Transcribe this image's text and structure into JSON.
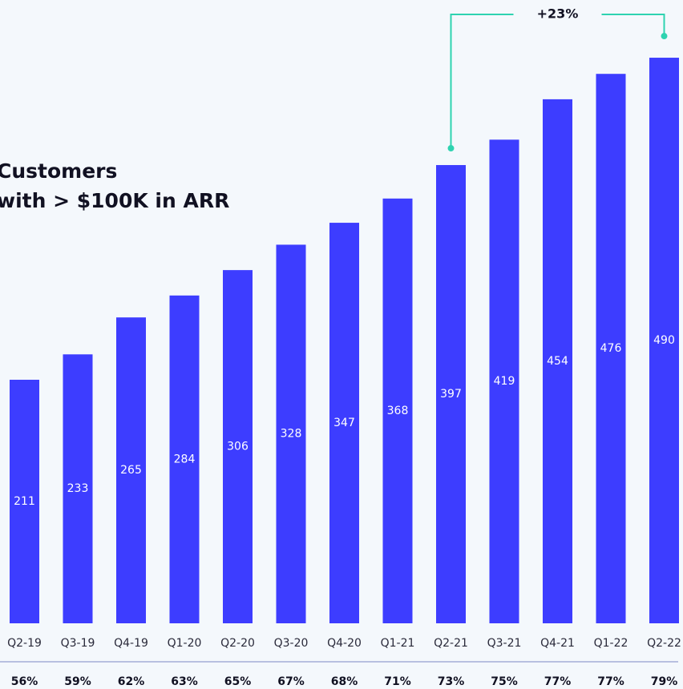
{
  "chart_data": {
    "type": "bar",
    "title_lines": [
      "Customers",
      "with > $100K in ARR"
    ],
    "categories": [
      "Q2-19",
      "Q3-19",
      "Q4-19",
      "Q1-20",
      "Q2-20",
      "Q3-20",
      "Q4-20",
      "Q1-21",
      "Q2-21",
      "Q3-21",
      "Q4-21",
      "Q1-22",
      "Q2-22"
    ],
    "values": [
      211,
      233,
      265,
      284,
      306,
      328,
      347,
      368,
      397,
      419,
      454,
      476,
      490
    ],
    "color": "#3d3dff",
    "ylim": [
      0,
      540
    ],
    "row_labels": [
      "56%",
      "59%",
      "62%",
      "63%",
      "65%",
      "67%",
      "68%",
      "71%",
      "73%",
      "75%",
      "77%",
      "77%",
      "79%"
    ],
    "annotation": {
      "text": "+23%",
      "from": 8,
      "to": 12,
      "color": "#2ed3b0"
    }
  }
}
